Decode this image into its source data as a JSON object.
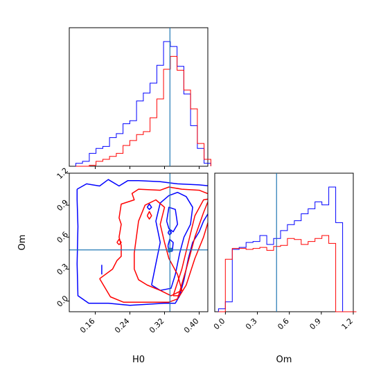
{
  "chart_data": {
    "type": "corner",
    "xlabel": "H0",
    "ylabel": "Om",
    "colors": {
      "blue": "#0000ff",
      "red": "#ff0000",
      "truth": "#1f77b4"
    },
    "truth": {
      "H0": 0.3325,
      "Om": 0.48
    },
    "h0_ticks": [
      "0.16",
      "0.24",
      "0.32",
      "0.40"
    ],
    "om_ticks": [
      "0.0",
      "0.3",
      "0.6",
      "0.9",
      "1.2"
    ],
    "h0_range": [
      0.1,
      0.42
    ],
    "om_range": [
      -0.1,
      1.2
    ],
    "hist_h0": {
      "edges": [
        0.115,
        0.1306,
        0.1462,
        0.1618,
        0.1774,
        0.193,
        0.2086,
        0.2242,
        0.2398,
        0.2554,
        0.271,
        0.2866,
        0.3022,
        0.3178,
        0.3334,
        0.349,
        0.3646,
        0.3802,
        0.3958,
        0.4114,
        0.427
      ],
      "series": [
        {
          "color": "blue",
          "values": [
            3,
            5,
            13,
            18,
            20,
            29,
            33,
            43,
            46,
            66,
            74,
            84,
            102,
            126,
            121,
            101,
            73,
            41,
            18,
            3
          ]
        },
        {
          "color": "red",
          "values": [
            0,
            0,
            1,
            5,
            7,
            10,
            13,
            21,
            26,
            32,
            35,
            49,
            68,
            98,
            111,
            97,
            77,
            58,
            23,
            7
          ]
        }
      ]
    },
    "hist_om": {
      "edges": [
        -0.065,
        -0.0003,
        0.0644,
        0.1291,
        0.1938,
        0.2585,
        0.3232,
        0.3879,
        0.4526,
        0.5173,
        0.582,
        0.6467,
        0.7114,
        0.7761,
        0.8408,
        0.9055,
        0.9702,
        1.0349,
        1.0996,
        1.1643,
        1.229
      ],
      "series": [
        {
          "color": "blue",
          "values": [
            3,
            10,
            63,
            65,
            70,
            71,
            77,
            68,
            74,
            82,
            88,
            92,
            99,
            104,
            111,
            108,
            126,
            90,
            0,
            0
          ]
        },
        {
          "color": "red",
          "values": [
            0,
            53,
            64,
            64,
            63,
            64,
            65,
            62,
            66,
            67,
            74,
            73,
            68,
            71,
            74,
            77,
            69,
            0,
            0,
            0
          ]
        }
      ]
    },
    "contours": [
      {
        "color": "blue",
        "points": [
          [
            0.118,
            1.05
          ],
          [
            0.14,
            1.1
          ],
          [
            0.17,
            1.08
          ],
          [
            0.19,
            1.14
          ],
          [
            0.215,
            1.08
          ],
          [
            0.235,
            1.13
          ],
          [
            0.26,
            1.13
          ],
          [
            0.31,
            1.12
          ],
          [
            0.35,
            1.1
          ],
          [
            0.4,
            1.09
          ],
          [
            0.425,
            1.08
          ],
          [
            0.425,
            0.85
          ],
          [
            0.41,
            0.75
          ],
          [
            0.4,
            0.65
          ],
          [
            0.385,
            0.55
          ],
          [
            0.375,
            0.4
          ],
          [
            0.365,
            0.2
          ],
          [
            0.355,
            0.05
          ],
          [
            0.345,
            -0.02
          ],
          [
            0.32,
            -0.02
          ],
          [
            0.28,
            -0.03
          ],
          [
            0.24,
            -0.04
          ],
          [
            0.19,
            -0.02
          ],
          [
            0.145,
            -0.02
          ],
          [
            0.12,
            0.05
          ],
          [
            0.118,
            0.35
          ],
          [
            0.12,
            0.7
          ],
          [
            0.118,
            0.95
          ],
          [
            0.118,
            1.05
          ]
        ]
      },
      {
        "color": "blue",
        "points": [
          [
            0.29,
            0.15
          ],
          [
            0.3,
            0.35
          ],
          [
            0.31,
            0.55
          ],
          [
            0.3,
            0.75
          ],
          [
            0.31,
            0.92
          ],
          [
            0.33,
            0.99
          ],
          [
            0.35,
            1.02
          ],
          [
            0.37,
            0.98
          ],
          [
            0.385,
            0.88
          ],
          [
            0.38,
            0.72
          ],
          [
            0.365,
            0.6
          ],
          [
            0.355,
            0.45
          ],
          [
            0.345,
            0.25
          ],
          [
            0.335,
            0.12
          ],
          [
            0.31,
            0.1
          ],
          [
            0.29,
            0.15
          ]
        ]
      },
      {
        "color": "blue",
        "points": [
          [
            0.325,
            0.75
          ],
          [
            0.33,
            0.88
          ],
          [
            0.345,
            0.86
          ],
          [
            0.35,
            0.72
          ],
          [
            0.34,
            0.65
          ],
          [
            0.33,
            0.68
          ],
          [
            0.325,
            0.75
          ]
        ]
      },
      {
        "color": "blue",
        "points": [
          [
            0.328,
            0.52
          ],
          [
            0.332,
            0.58
          ],
          [
            0.34,
            0.55
          ],
          [
            0.338,
            0.47
          ],
          [
            0.33,
            0.46
          ],
          [
            0.328,
            0.52
          ]
        ]
      },
      {
        "color": "blue",
        "points": [
          [
            0.328,
            0.64
          ],
          [
            0.332,
            0.67
          ],
          [
            0.336,
            0.64
          ],
          [
            0.332,
            0.62
          ],
          [
            0.328,
            0.64
          ]
        ]
      },
      {
        "color": "blue",
        "points": [
          [
            0.28,
            0.88
          ],
          [
            0.285,
            0.91
          ],
          [
            0.29,
            0.88
          ],
          [
            0.285,
            0.86
          ],
          [
            0.28,
            0.88
          ]
        ]
      },
      {
        "color": "blue",
        "points": [
          [
            0.175,
            0.25
          ],
          [
            0.175,
            0.34
          ]
        ]
      },
      {
        "color": "red",
        "points": [
          [
            0.17,
            0.21
          ],
          [
            0.195,
            0.04
          ],
          [
            0.225,
            -0.01
          ],
          [
            0.28,
            -0.01
          ],
          [
            0.33,
            -0.01
          ],
          [
            0.35,
            0.02
          ],
          [
            0.37,
            0.3
          ],
          [
            0.39,
            0.6
          ],
          [
            0.41,
            0.83
          ],
          [
            0.425,
            0.98
          ],
          [
            0.425,
            1.0
          ],
          [
            0.4,
            1.04
          ],
          [
            0.36,
            1.05
          ],
          [
            0.33,
            1.07
          ],
          [
            0.31,
            1.04
          ],
          [
            0.26,
            1.05
          ],
          [
            0.245,
            1.01
          ],
          [
            0.25,
            0.95
          ],
          [
            0.22,
            0.91
          ],
          [
            0.215,
            0.78
          ],
          [
            0.22,
            0.72
          ],
          [
            0.215,
            0.6
          ],
          [
            0.22,
            0.52
          ],
          [
            0.22,
            0.42
          ],
          [
            0.21,
            0.38
          ],
          [
            0.2,
            0.3
          ],
          [
            0.17,
            0.21
          ]
        ]
      },
      {
        "color": "red",
        "points": [
          [
            0.25,
            0.3
          ],
          [
            0.25,
            0.45
          ],
          [
            0.255,
            0.6
          ],
          [
            0.26,
            0.75
          ],
          [
            0.275,
            0.9
          ],
          [
            0.3,
            0.95
          ],
          [
            0.32,
            0.88
          ],
          [
            0.31,
            0.72
          ],
          [
            0.32,
            0.55
          ],
          [
            0.33,
            0.4
          ],
          [
            0.35,
            0.25
          ],
          [
            0.36,
            0.1
          ],
          [
            0.335,
            0.05
          ],
          [
            0.31,
            0.1
          ],
          [
            0.28,
            0.15
          ],
          [
            0.26,
            0.2
          ],
          [
            0.25,
            0.3
          ]
        ]
      },
      {
        "color": "red",
        "points": [
          [
            0.34,
            0.05
          ],
          [
            0.36,
            0.3
          ],
          [
            0.375,
            0.55
          ],
          [
            0.39,
            0.8
          ],
          [
            0.41,
            0.95
          ],
          [
            0.425,
            0.96
          ],
          [
            0.425,
            0.8
          ],
          [
            0.41,
            0.6
          ],
          [
            0.39,
            0.4
          ],
          [
            0.37,
            0.15
          ],
          [
            0.355,
            0.05
          ],
          [
            0.34,
            0.05
          ]
        ]
      },
      {
        "color": "red",
        "points": [
          [
            0.28,
            0.8
          ],
          [
            0.285,
            0.84
          ],
          [
            0.29,
            0.8
          ],
          [
            0.285,
            0.77
          ],
          [
            0.28,
            0.8
          ]
        ]
      },
      {
        "color": "red",
        "points": [
          [
            0.21,
            0.55
          ],
          [
            0.215,
            0.58
          ],
          [
            0.22,
            0.55
          ],
          [
            0.215,
            0.53
          ],
          [
            0.21,
            0.55
          ]
        ]
      }
    ]
  }
}
